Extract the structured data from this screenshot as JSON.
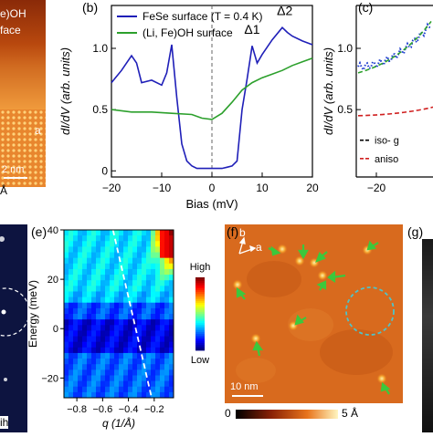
{
  "panels": {
    "a": {
      "letter": "",
      "label_top": "e)OH",
      "label_top2": "face",
      "axis_label": "a",
      "scalebar": "2 nm",
      "unit": "Å"
    },
    "b": {
      "letter": "(b)",
      "legend": [
        "FeSe surface (T = 0.4 K)",
        "(Li, Fe)OH surface"
      ],
      "annotations": [
        "Δ1",
        "Δ2"
      ],
      "xlabel": "Bias (mV)",
      "ylabel": "dI/dV (arb. units)",
      "xticks": [
        "−20",
        "−10",
        "0",
        "10",
        "20"
      ],
      "yticks": [
        "0",
        "0.5",
        "1.0"
      ]
    },
    "c": {
      "letter": "(c)",
      "ylabel": "dI/dV (arb. units)",
      "yticks": [
        "0.5",
        "1.0"
      ],
      "xticks": [
        "−20"
      ],
      "legend": [
        "iso- g",
        "aniso"
      ]
    },
    "d": {
      "label": "ih"
    },
    "e": {
      "letter": "(e)",
      "xlabel": "q (1/Å)",
      "ylabel": "Energy (meV)",
      "xticks": [
        "−0.8",
        "−0.6",
        "−0.4",
        "−0.2"
      ],
      "yticks": [
        "40",
        "20",
        "0",
        "−20"
      ],
      "colorbar_high": "High",
      "colorbar_low": "Low"
    },
    "f": {
      "letter": "(f)",
      "axis_b": "b",
      "axis_a": "a",
      "scalebar": "10 nm",
      "colorbar_min": "0",
      "colorbar_max": "5 Å"
    },
    "g": {
      "letter": "(g)"
    }
  },
  "colors": {
    "fese": "#1f1fb8",
    "lifeoh": "#2ca02c",
    "stm_orange": "#d9661a",
    "arrow": "#3cc83c",
    "circle": "#4fc3c8"
  },
  "chart_data": [
    {
      "type": "line",
      "title": "",
      "xlabel": "Bias (mV)",
      "ylabel": "dI/dV (arb. units)",
      "xlim": [
        -20,
        20
      ],
      "ylim": [
        -0.05,
        1.35
      ],
      "series": [
        {
          "name": "FeSe surface (T = 0.4 K)",
          "x": [
            -20,
            -18,
            -16,
            -15,
            -14,
            -12,
            -10,
            -9,
            -8,
            -7,
            -6,
            -5,
            -4,
            -3,
            -2,
            -1,
            0,
            1,
            2,
            3,
            4,
            5,
            6,
            7,
            8,
            9,
            10,
            12,
            14,
            15,
            16,
            18,
            20
          ],
          "values": [
            0.72,
            0.82,
            0.94,
            0.88,
            0.72,
            0.74,
            0.7,
            0.8,
            1.03,
            0.6,
            0.22,
            0.08,
            0.04,
            0.02,
            0.02,
            0.02,
            0.02,
            0.02,
            0.02,
            0.03,
            0.04,
            0.08,
            0.5,
            0.75,
            1.02,
            0.88,
            0.95,
            1.07,
            1.17,
            1.13,
            1.1,
            1.06,
            1.03
          ]
        },
        {
          "name": "(Li, Fe)OH surface",
          "x": [
            -20,
            -16,
            -12,
            -8,
            -4,
            -2,
            0,
            2,
            4,
            6,
            8,
            10,
            12,
            14,
            16,
            18,
            20
          ],
          "values": [
            0.5,
            0.48,
            0.48,
            0.47,
            0.46,
            0.43,
            0.42,
            0.47,
            0.56,
            0.66,
            0.72,
            0.76,
            0.79,
            0.82,
            0.86,
            0.89,
            0.92
          ]
        }
      ]
    },
    {
      "type": "heatmap",
      "xlabel": "q (1/Å)",
      "ylabel": "Energy (meV)",
      "xlim": [
        -0.9,
        -0.05
      ],
      "ylim": [
        -28,
        40
      ]
    }
  ]
}
